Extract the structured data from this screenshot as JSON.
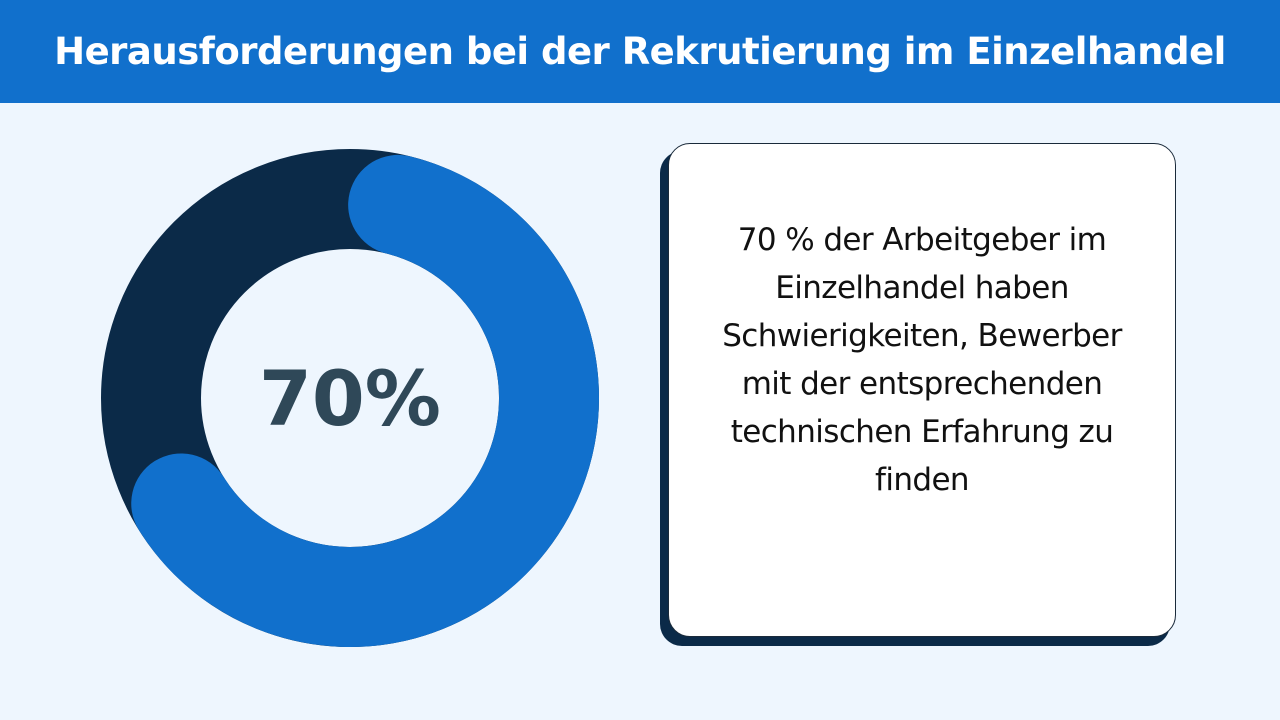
{
  "header": {
    "title": "Herausforderungen bei der Rekrutierung im Einzelhandel"
  },
  "chart_data": {
    "type": "pie",
    "style": "donut",
    "values": [
      70,
      30
    ],
    "center_label": "70%",
    "colors": {
      "highlight": "#1170cc",
      "remainder": "#0b2a48"
    }
  },
  "card": {
    "lines": [
      "70 % der Arbeitgeber im",
      "Einzelhandel haben",
      "Schwierigkeiten, Bewerber",
      "mit der entsprechenden",
      "technischen Erfahrung zu",
      "finden"
    ]
  },
  "colors": {
    "header": "#1170cc",
    "background": "#eef6fe",
    "shadow": "#0b2a48"
  }
}
